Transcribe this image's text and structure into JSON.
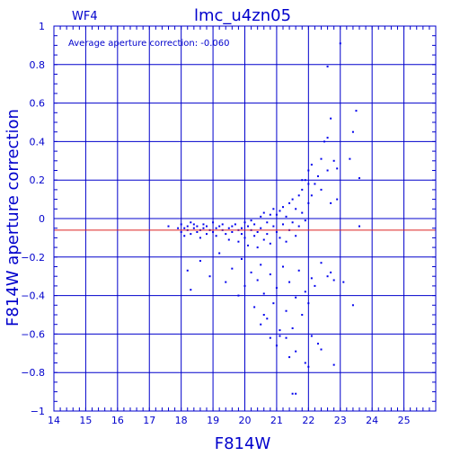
{
  "colors": {
    "axis": "#0000cc",
    "points": "#0000ee",
    "reference": "#dd2222",
    "background": "#ffffff"
  },
  "chart_data": {
    "type": "scatter",
    "panel_label": "WF4",
    "title": "lmc_u4zn05",
    "annotation": "Average aperture correction:  -0.060",
    "xlabel": "F814W",
    "ylabel": "F814W aperture correction",
    "xlim": [
      14,
      26
    ],
    "ylim": [
      -1,
      1
    ],
    "grid": true,
    "xticks": [
      14,
      15,
      16,
      17,
      18,
      19,
      20,
      21,
      22,
      23,
      24,
      25
    ],
    "xtick_labels": [
      "14",
      "15",
      "16",
      "17",
      "18",
      "19",
      "20",
      "21",
      "22",
      "23",
      "24",
      "25"
    ],
    "yticks": [
      -1,
      -0.8,
      -0.6,
      -0.4,
      -0.2,
      0,
      0.2,
      0.4,
      0.6,
      0.8,
      1
    ],
    "ytick_labels": [
      "−1",
      "−0.8",
      "−0.6",
      "−0.4",
      "−0.2",
      "0",
      "0.2",
      "0.4",
      "0.6",
      "0.8",
      "1"
    ],
    "reference_line_y": -0.06,
    "points": [
      [
        17.6,
        -0.04
      ],
      [
        17.9,
        -0.05
      ],
      [
        18.0,
        -0.03
      ],
      [
        18.0,
        -0.07
      ],
      [
        18.1,
        -0.05
      ],
      [
        18.1,
        -0.09
      ],
      [
        18.2,
        -0.04
      ],
      [
        18.2,
        -0.06
      ],
      [
        18.3,
        -0.02
      ],
      [
        18.3,
        -0.08
      ],
      [
        18.4,
        -0.05
      ],
      [
        18.4,
        -0.03
      ],
      [
        18.5,
        -0.07
      ],
      [
        18.5,
        -0.04
      ],
      [
        18.6,
        -0.06
      ],
      [
        18.6,
        -0.1
      ],
      [
        18.7,
        -0.03
      ],
      [
        18.7,
        -0.05
      ],
      [
        18.8,
        -0.08
      ],
      [
        18.8,
        -0.04
      ],
      [
        18.9,
        -0.06
      ],
      [
        19.0,
        -0.02
      ],
      [
        19.0,
        -0.07
      ],
      [
        19.1,
        -0.05
      ],
      [
        19.1,
        -0.09
      ],
      [
        19.2,
        -0.04
      ],
      [
        19.3,
        -0.06
      ],
      [
        19.3,
        -0.03
      ],
      [
        19.4,
        -0.08
      ],
      [
        19.5,
        -0.05
      ],
      [
        19.5,
        -0.11
      ],
      [
        19.6,
        -0.04
      ],
      [
        19.6,
        -0.07
      ],
      [
        19.7,
        -0.03
      ],
      [
        19.8,
        -0.06
      ],
      [
        19.8,
        -0.12
      ],
      [
        19.9,
        -0.05
      ],
      [
        19.9,
        -0.08
      ],
      [
        20.0,
        -0.02
      ],
      [
        20.0,
        -0.1
      ],
      [
        20.1,
        -0.04
      ],
      [
        20.1,
        -0.14
      ],
      [
        20.2,
        -0.06
      ],
      [
        20.2,
        -0.01
      ],
      [
        20.3,
        -0.09
      ],
      [
        20.3,
        -0.03
      ],
      [
        20.4,
        -0.07
      ],
      [
        20.4,
        -0.15
      ],
      [
        20.5,
        0.01
      ],
      [
        20.5,
        -0.05
      ],
      [
        20.6,
        -0.11
      ],
      [
        20.6,
        0.03
      ],
      [
        20.7,
        -0.08
      ],
      [
        20.7,
        -0.02
      ],
      [
        20.8,
        0.02
      ],
      [
        20.8,
        -0.13
      ],
      [
        20.9,
        -0.04
      ],
      [
        20.9,
        0.05
      ],
      [
        21.0,
        -0.07
      ],
      [
        21.0,
        0.02
      ],
      [
        21.1,
        -0.1
      ],
      [
        21.1,
        0.04
      ],
      [
        21.2,
        -0.03
      ],
      [
        21.2,
        0.06
      ],
      [
        21.3,
        -0.12
      ],
      [
        21.3,
        0.01
      ],
      [
        21.4,
        -0.06
      ],
      [
        21.4,
        0.08
      ],
      [
        21.5,
        -0.02
      ],
      [
        21.5,
        0.1
      ],
      [
        21.6,
        -0.09
      ],
      [
        21.6,
        0.05
      ],
      [
        21.7,
        0.12
      ],
      [
        21.7,
        -0.04
      ],
      [
        21.8,
        0.15
      ],
      [
        21.8,
        0.03
      ],
      [
        21.9,
        0.2
      ],
      [
        21.9,
        -0.01
      ],
      [
        22.0,
        0.25
      ],
      [
        22.0,
        0.08
      ],
      [
        22.1,
        0.28
      ],
      [
        22.1,
        0.12
      ],
      [
        22.2,
        0.18
      ],
      [
        22.3,
        0.22
      ],
      [
        22.4,
        0.31
      ],
      [
        22.5,
        0.4
      ],
      [
        22.6,
        0.42
      ],
      [
        22.4,
        0.15
      ],
      [
        22.6,
        0.25
      ],
      [
        22.8,
        0.3
      ],
      [
        22.7,
        0.52
      ],
      [
        22.9,
        0.26
      ],
      [
        23.3,
        0.31
      ],
      [
        23.5,
        0.56
      ],
      [
        23.4,
        0.45
      ],
      [
        23.6,
        0.21
      ],
      [
        23.0,
        0.91
      ],
      [
        22.6,
        0.79
      ],
      [
        22.7,
        0.08
      ],
      [
        22.9,
        0.1
      ],
      [
        21.8,
        0.2
      ],
      [
        22.0,
        0.18
      ],
      [
        18.2,
        -0.27
      ],
      [
        18.3,
        -0.37
      ],
      [
        18.6,
        -0.22
      ],
      [
        18.9,
        -0.3
      ],
      [
        19.2,
        -0.18
      ],
      [
        19.4,
        -0.33
      ],
      [
        19.6,
        -0.26
      ],
      [
        19.8,
        -0.4
      ],
      [
        19.9,
        -0.21
      ],
      [
        20.0,
        -0.35
      ],
      [
        20.2,
        -0.28
      ],
      [
        20.3,
        -0.46
      ],
      [
        20.4,
        -0.32
      ],
      [
        20.5,
        -0.24
      ],
      [
        20.6,
        -0.39
      ],
      [
        20.7,
        -0.52
      ],
      [
        20.8,
        -0.29
      ],
      [
        20.9,
        -0.44
      ],
      [
        21.0,
        -0.36
      ],
      [
        21.1,
        -0.61
      ],
      [
        21.2,
        -0.25
      ],
      [
        21.3,
        -0.48
      ],
      [
        21.4,
        -0.33
      ],
      [
        21.5,
        -0.57
      ],
      [
        21.6,
        -0.41
      ],
      [
        21.7,
        -0.27
      ],
      [
        21.8,
        -0.5
      ],
      [
        21.9,
        -0.38
      ],
      [
        22.0,
        -0.44
      ],
      [
        22.1,
        -0.31
      ],
      [
        22.2,
        -0.35
      ],
      [
        22.4,
        -0.23
      ],
      [
        22.6,
        -0.3
      ],
      [
        22.7,
        -0.28
      ],
      [
        22.8,
        -0.32
      ],
      [
        23.1,
        -0.33
      ],
      [
        23.4,
        -0.45
      ],
      [
        23.6,
        -0.04
      ],
      [
        20.5,
        -0.55
      ],
      [
        20.8,
        -0.62
      ],
      [
        21.0,
        -0.66
      ],
      [
        21.3,
        -0.62
      ],
      [
        21.6,
        -0.69
      ],
      [
        21.9,
        -0.75
      ],
      [
        22.1,
        -0.61
      ],
      [
        22.3,
        -0.65
      ],
      [
        21.5,
        -0.91
      ],
      [
        21.6,
        -0.91
      ],
      [
        22.0,
        -0.77
      ],
      [
        22.4,
        -0.68
      ],
      [
        22.8,
        -0.76
      ],
      [
        21.1,
        -0.58
      ],
      [
        20.6,
        -0.5
      ],
      [
        21.4,
        -0.72
      ]
    ]
  }
}
